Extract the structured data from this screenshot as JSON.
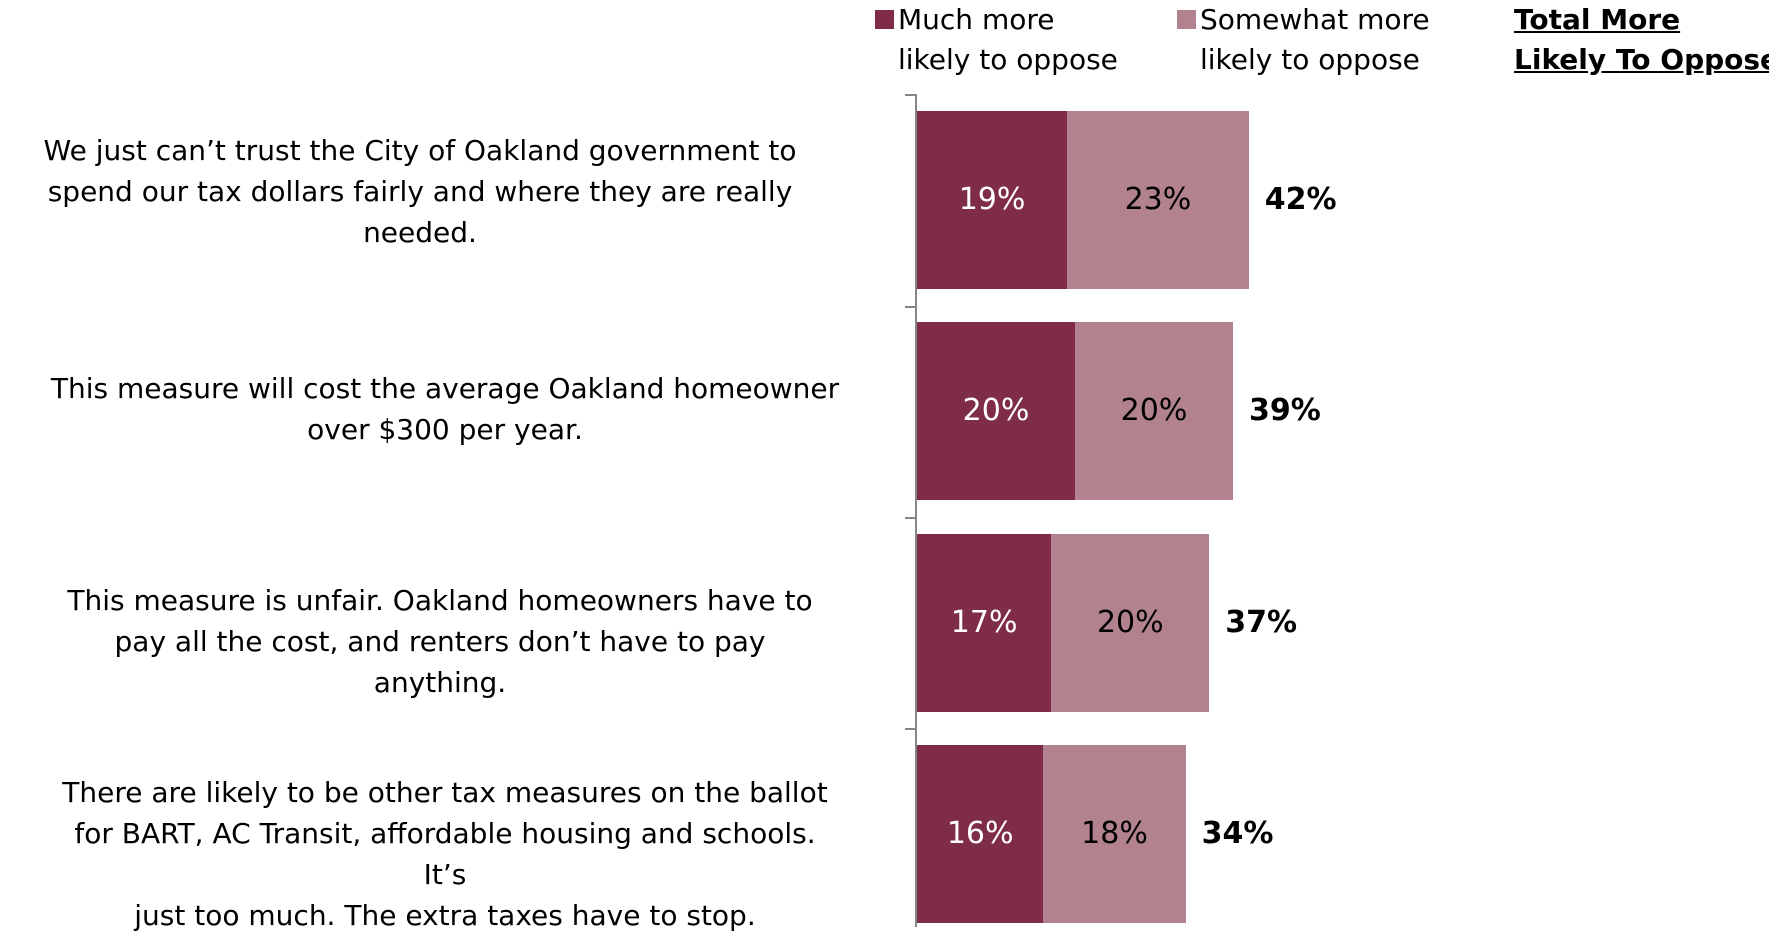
{
  "chart_data": {
    "type": "bar",
    "orientation": "horizontal",
    "stacked": true,
    "categories": [
      "We just can’t trust the City of Oakland government to spend our tax dollars fairly and where they are really needed.",
      "This measure will cost the average Oakland homeowner over $300 per year.",
      "This measure is unfair. Oakland homeowners have to pay all the cost, and renters don’t have to pay anything.",
      "There are likely to be other tax measures on the ballot for BART, AC Transit, affordable housing and schools. It’s just too much. The extra taxes have to stop."
    ],
    "category_lines": [
      [
        "We just can’t trust the City of Oakland government to",
        "spend our tax dollars fairly and where they are really",
        "needed."
      ],
      [
        "This measure will cost the average Oakland homeowner",
        "over $300 per year."
      ],
      [
        "This measure is unfair. Oakland homeowners have to",
        "pay all the cost, and renters don’t have to pay anything."
      ],
      [
        "There are likely to be other tax measures on the ballot",
        "for BART, AC Transit, affordable housing and schools. It’s",
        "just too much. The extra taxes have to stop."
      ]
    ],
    "series": [
      {
        "name": "Much more likely to oppose",
        "name_lines": [
          "Much more",
          "likely to oppose"
        ],
        "color": "#7f2c4b",
        "values": [
          19,
          20,
          17,
          16
        ],
        "labels": [
          "19%",
          "20%",
          "17%",
          "16%"
        ]
      },
      {
        "name": "Somewhat more likely to oppose",
        "name_lines": [
          "Somewhat more",
          "likely to oppose"
        ],
        "color": "#b3828f",
        "values": [
          23,
          20,
          20,
          18
        ],
        "labels": [
          "23%",
          "20%",
          "20%",
          "18%"
        ]
      }
    ],
    "totals": {
      "header_lines": [
        "Total More",
        "Likely To Oppose"
      ],
      "values": [
        42,
        39,
        37,
        34
      ],
      "labels": [
        "42%",
        "39%",
        "37%",
        "34%"
      ]
    },
    "xlim": [
      0,
      100
    ],
    "grid": false,
    "legend_position": "top"
  }
}
